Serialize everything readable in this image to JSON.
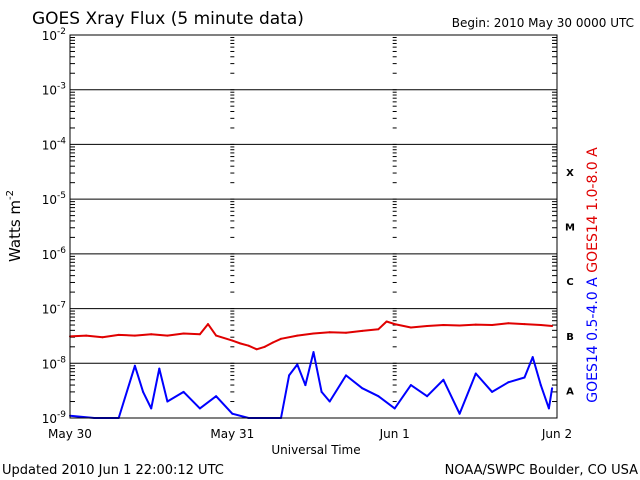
{
  "chart_data": {
    "type": "line",
    "title": "GOES Xray Flux (5 minute data)",
    "begin": "Begin:  2010 May 30 0000 UTC",
    "xlabel": "Universal Time",
    "ylabel": "Watts m",
    "ylabel_exp": "-2",
    "x_ticks": [
      "May 30",
      "May 31",
      "Jun 1",
      "Jun 2"
    ],
    "x_range_days": [
      0,
      3
    ],
    "y_scale": "log",
    "ylim": [
      1e-09,
      0.01
    ],
    "y_ticks": [
      {
        "base": "10",
        "exp": "-2"
      },
      {
        "base": "10",
        "exp": "-3"
      },
      {
        "base": "10",
        "exp": "-4"
      },
      {
        "base": "10",
        "exp": "-5"
      },
      {
        "base": "10",
        "exp": "-6"
      },
      {
        "base": "10",
        "exp": "-7"
      },
      {
        "base": "10",
        "exp": "-8"
      },
      {
        "base": "10",
        "exp": "-9"
      }
    ],
    "flare_classes": [
      "X",
      "M",
      "C",
      "B",
      "A"
    ],
    "grid": true,
    "series": [
      {
        "name": "GOES14 1.0-8.0 A",
        "color": "#e00000",
        "points": [
          [
            0.0,
            3.1e-08
          ],
          [
            0.1,
            3.2e-08
          ],
          [
            0.2,
            3e-08
          ],
          [
            0.3,
            3.3e-08
          ],
          [
            0.4,
            3.2e-08
          ],
          [
            0.5,
            3.4e-08
          ],
          [
            0.6,
            3.2e-08
          ],
          [
            0.7,
            3.5e-08
          ],
          [
            0.8,
            3.4e-08
          ],
          [
            0.85,
            5.2e-08
          ],
          [
            0.9,
            3.2e-08
          ],
          [
            1.0,
            2.6e-08
          ],
          [
            1.05,
            2.3e-08
          ],
          [
            1.1,
            2.1e-08
          ],
          [
            1.15,
            1.8e-08
          ],
          [
            1.2,
            2e-08
          ],
          [
            1.25,
            2.4e-08
          ],
          [
            1.3,
            2.8e-08
          ],
          [
            1.4,
            3.2e-08
          ],
          [
            1.5,
            3.5e-08
          ],
          [
            1.6,
            3.7e-08
          ],
          [
            1.7,
            3.6e-08
          ],
          [
            1.8,
            3.9e-08
          ],
          [
            1.9,
            4.2e-08
          ],
          [
            1.95,
            5.8e-08
          ],
          [
            2.0,
            5.2e-08
          ],
          [
            2.1,
            4.5e-08
          ],
          [
            2.2,
            4.8e-08
          ],
          [
            2.3,
            5e-08
          ],
          [
            2.4,
            4.9e-08
          ],
          [
            2.5,
            5.1e-08
          ],
          [
            2.6,
            5e-08
          ],
          [
            2.7,
            5.4e-08
          ],
          [
            2.8,
            5.2e-08
          ],
          [
            2.9,
            5e-08
          ],
          [
            2.97,
            4.8e-08
          ]
        ]
      },
      {
        "name": "GOES14 0.5-4.0 A",
        "color": "#0000ff",
        "points": [
          [
            0.0,
            1.1e-09
          ],
          [
            0.15,
            1e-09
          ],
          [
            0.3,
            1e-09
          ],
          [
            0.4,
            9e-09
          ],
          [
            0.45,
            3e-09
          ],
          [
            0.5,
            1.5e-09
          ],
          [
            0.55,
            8e-09
          ],
          [
            0.6,
            2e-09
          ],
          [
            0.7,
            3e-09
          ],
          [
            0.8,
            1.5e-09
          ],
          [
            0.9,
            2.5e-09
          ],
          [
            1.0,
            1.2e-09
          ],
          [
            1.1,
            1e-09
          ],
          [
            1.3,
            1e-09
          ],
          [
            1.35,
            6e-09
          ],
          [
            1.4,
            9.5e-09
          ],
          [
            1.45,
            4e-09
          ],
          [
            1.5,
            1.6e-08
          ],
          [
            1.55,
            3e-09
          ],
          [
            1.6,
            2e-09
          ],
          [
            1.7,
            6e-09
          ],
          [
            1.8,
            3.5e-09
          ],
          [
            1.9,
            2.5e-09
          ],
          [
            2.0,
            1.5e-09
          ],
          [
            2.1,
            4e-09
          ],
          [
            2.2,
            2.5e-09
          ],
          [
            2.3,
            5e-09
          ],
          [
            2.4,
            1.2e-09
          ],
          [
            2.5,
            6.5e-09
          ],
          [
            2.6,
            3e-09
          ],
          [
            2.7,
            4.5e-09
          ],
          [
            2.8,
            5.5e-09
          ],
          [
            2.85,
            1.3e-08
          ],
          [
            2.9,
            4e-09
          ],
          [
            2.95,
            1.5e-09
          ],
          [
            2.97,
            3.5e-09
          ]
        ]
      }
    ]
  },
  "footer": {
    "updated": "Updated 2010 Jun  1 22:00:12 UTC",
    "source": "NOAA/SWPC Boulder, CO USA"
  }
}
